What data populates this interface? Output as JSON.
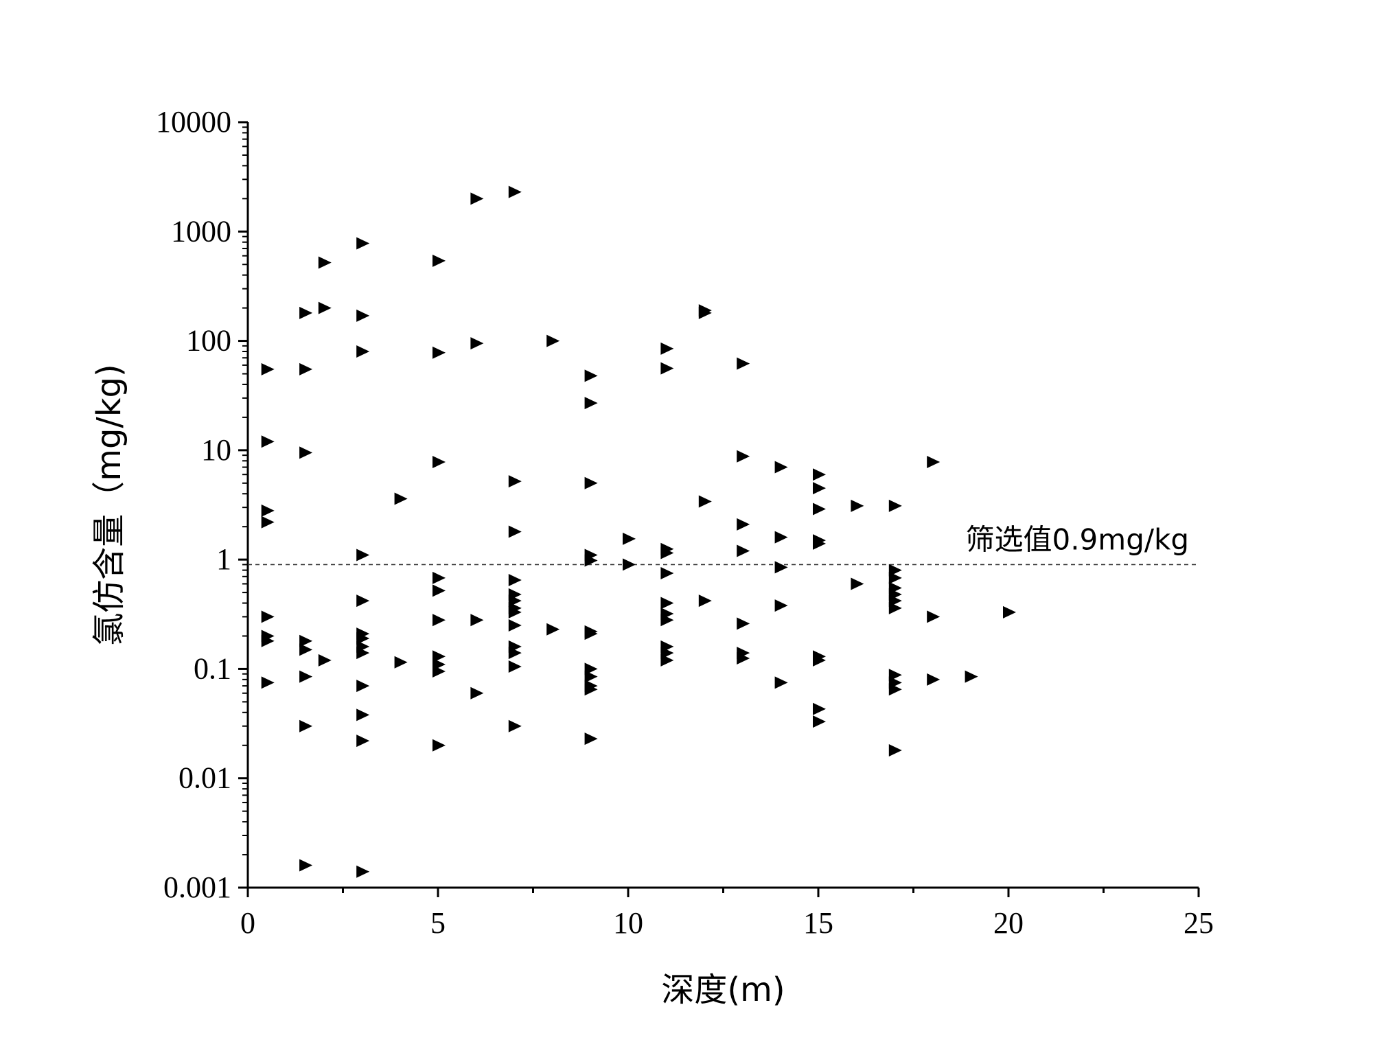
{
  "chart_data": {
    "type": "scatter",
    "xlabel": "深度(m)",
    "ylabel": "氯仿含量（mg/kg)",
    "x_range": [
      0,
      25
    ],
    "y_range": [
      0.001,
      10000
    ],
    "y_scale": "log",
    "grid": false,
    "legend": "none",
    "marker": "right-triangle",
    "marker_color": "#000000",
    "x_ticks": [
      "0",
      "5",
      "10",
      "15",
      "20",
      "25"
    ],
    "y_ticks": [
      "0.001",
      "0.01",
      "0.1",
      "1",
      "10",
      "100",
      "1000",
      "10000"
    ],
    "reference_line": {
      "y": 0.9,
      "label": "筛选值0.9mg/kg",
      "style": "dashed"
    },
    "points": [
      [
        0.5,
        55
      ],
      [
        0.5,
        12
      ],
      [
        0.5,
        2.8
      ],
      [
        0.5,
        2.2
      ],
      [
        0.5,
        0.3
      ],
      [
        0.5,
        0.2
      ],
      [
        0.5,
        0.18
      ],
      [
        0.5,
        0.075
      ],
      [
        1.5,
        180
      ],
      [
        1.5,
        55
      ],
      [
        1.5,
        9.5
      ],
      [
        1.5,
        0.18
      ],
      [
        1.5,
        0.15
      ],
      [
        1.5,
        0.085
      ],
      [
        1.5,
        0.03
      ],
      [
        1.5,
        0.0016
      ],
      [
        2,
        520
      ],
      [
        2,
        200
      ],
      [
        2,
        0.12
      ],
      [
        3,
        780
      ],
      [
        3,
        170
      ],
      [
        3,
        80
      ],
      [
        3,
        1.1
      ],
      [
        3,
        0.42
      ],
      [
        3,
        0.21
      ],
      [
        3,
        0.19
      ],
      [
        3,
        0.16
      ],
      [
        3,
        0.14
      ],
      [
        3,
        0.07
      ],
      [
        3,
        0.038
      ],
      [
        3,
        0.022
      ],
      [
        3,
        0.0014
      ],
      [
        4,
        3.6
      ],
      [
        4,
        0.115
      ],
      [
        5,
        540
      ],
      [
        5,
        78
      ],
      [
        5,
        7.8
      ],
      [
        5,
        0.68
      ],
      [
        5,
        0.52
      ],
      [
        5,
        0.28
      ],
      [
        5,
        0.13
      ],
      [
        5,
        0.11
      ],
      [
        5,
        0.095
      ],
      [
        5,
        0.02
      ],
      [
        6,
        2000
      ],
      [
        6,
        95
      ],
      [
        6,
        0.28
      ],
      [
        6,
        0.06
      ],
      [
        7,
        2300
      ],
      [
        7,
        5.2
      ],
      [
        7,
        1.8
      ],
      [
        7,
        0.65
      ],
      [
        7,
        0.48
      ],
      [
        7,
        0.42
      ],
      [
        7,
        0.36
      ],
      [
        7,
        0.33
      ],
      [
        7,
        0.25
      ],
      [
        7,
        0.16
      ],
      [
        7,
        0.14
      ],
      [
        7,
        0.105
      ],
      [
        7,
        0.03
      ],
      [
        8,
        100
      ],
      [
        8,
        0.23
      ],
      [
        9,
        48
      ],
      [
        9,
        27
      ],
      [
        9,
        5
      ],
      [
        9,
        1.1
      ],
      [
        9,
        0.98
      ],
      [
        9,
        0.22
      ],
      [
        9,
        0.21
      ],
      [
        9,
        0.1
      ],
      [
        9,
        0.085
      ],
      [
        9,
        0.07
      ],
      [
        9,
        0.065
      ],
      [
        9,
        0.023
      ],
      [
        10,
        1.55
      ],
      [
        10,
        0.9
      ],
      [
        11,
        85
      ],
      [
        11,
        56
      ],
      [
        11,
        1.25
      ],
      [
        11,
        1.15
      ],
      [
        11,
        0.75
      ],
      [
        11,
        0.4
      ],
      [
        11,
        0.32
      ],
      [
        11,
        0.28
      ],
      [
        11,
        0.16
      ],
      [
        11,
        0.14
      ],
      [
        11,
        0.12
      ],
      [
        12,
        190
      ],
      [
        12,
        180
      ],
      [
        12,
        3.4
      ],
      [
        12,
        0.42
      ],
      [
        13,
        62
      ],
      [
        13,
        8.8
      ],
      [
        13,
        2.1
      ],
      [
        13,
        1.2
      ],
      [
        13,
        0.26
      ],
      [
        13,
        0.14
      ],
      [
        13,
        0.125
      ],
      [
        14,
        7
      ],
      [
        14,
        1.6
      ],
      [
        14,
        0.85
      ],
      [
        14,
        0.38
      ],
      [
        14,
        0.075
      ],
      [
        15,
        6
      ],
      [
        15,
        4.5
      ],
      [
        15,
        2.9
      ],
      [
        15,
        1.5
      ],
      [
        15,
        1.4
      ],
      [
        15,
        0.13
      ],
      [
        15,
        0.12
      ],
      [
        15,
        0.043
      ],
      [
        15,
        0.033
      ],
      [
        16,
        3.1
      ],
      [
        16,
        0.6
      ],
      [
        17,
        3.1
      ],
      [
        17,
        0.8
      ],
      [
        17,
        0.68
      ],
      [
        17,
        0.55
      ],
      [
        17,
        0.48
      ],
      [
        17,
        0.42
      ],
      [
        17,
        0.36
      ],
      [
        17,
        0.088
      ],
      [
        17,
        0.075
      ],
      [
        17,
        0.065
      ],
      [
        17,
        0.018
      ],
      [
        18,
        7.8
      ],
      [
        18,
        0.3
      ],
      [
        18,
        0.08
      ],
      [
        19,
        0.085
      ],
      [
        20,
        0.33
      ]
    ]
  }
}
